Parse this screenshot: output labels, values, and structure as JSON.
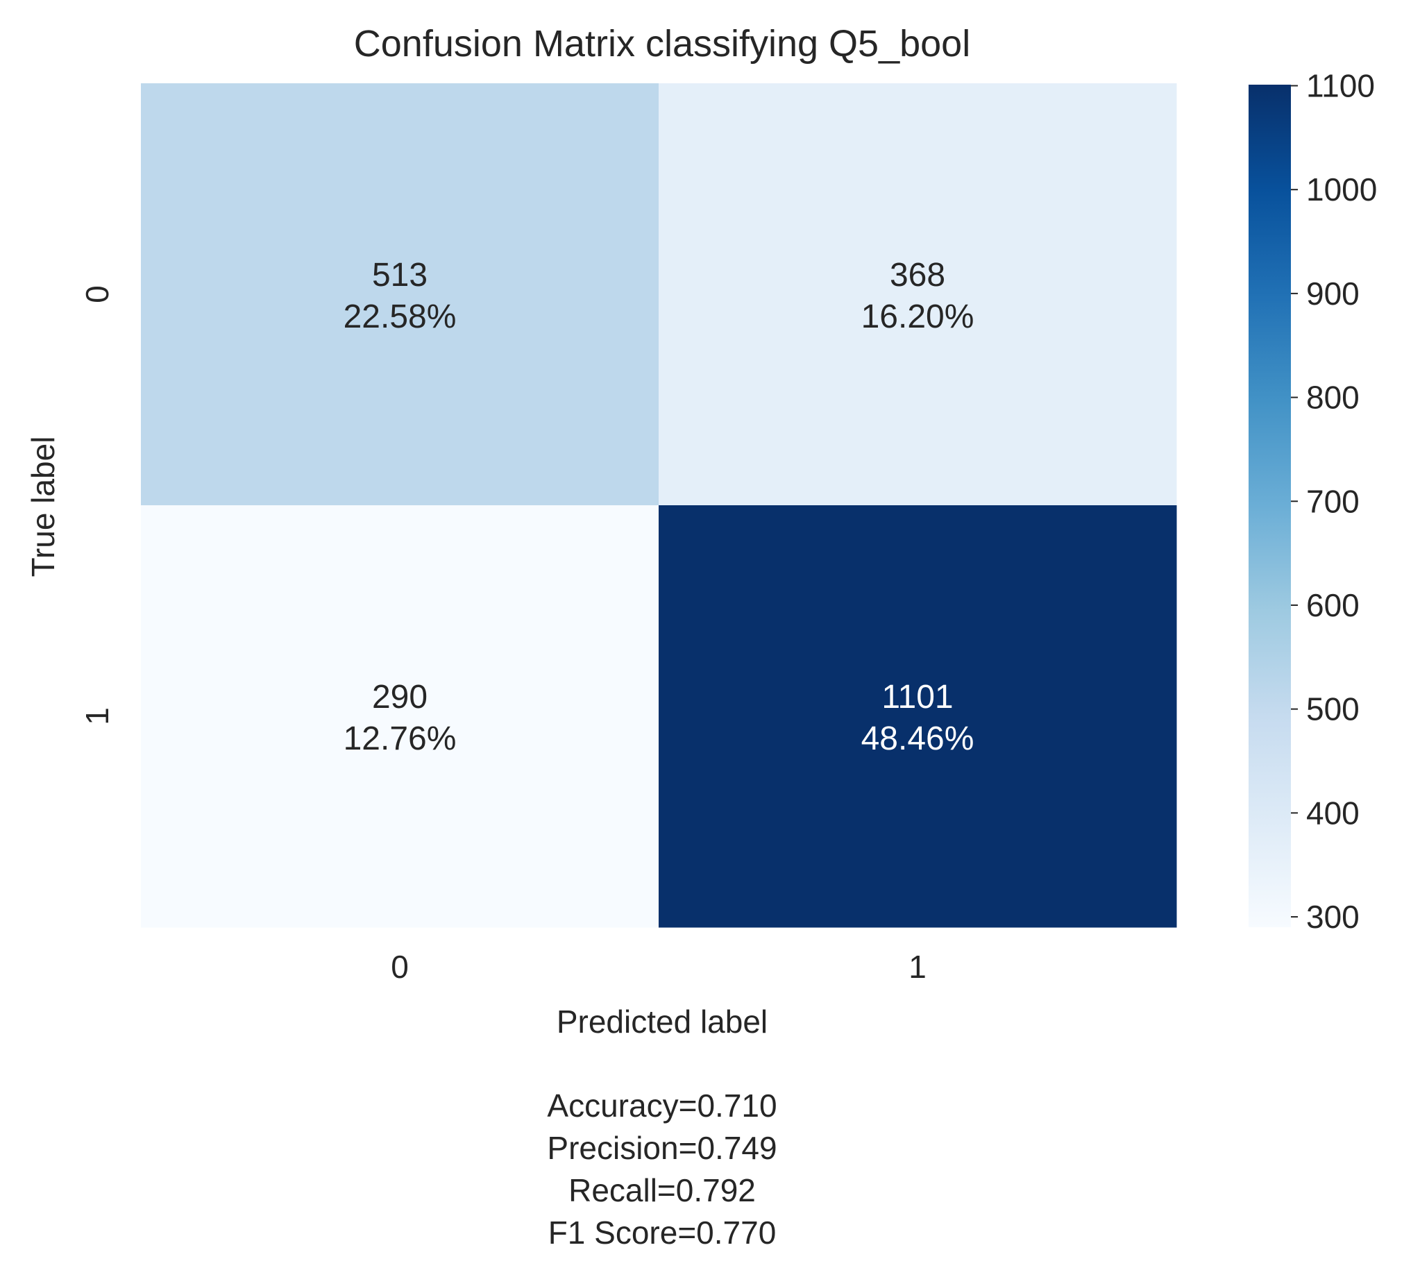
{
  "chart_data": {
    "type": "heatmap",
    "title": "Confusion Matrix classifying Q5_bool",
    "xlabel": "Predicted label",
    "ylabel": "True label",
    "x_ticklabels": [
      "0",
      "1"
    ],
    "y_ticklabels": [
      "0",
      "1"
    ],
    "values": [
      [
        513,
        368
      ],
      [
        290,
        1101
      ]
    ],
    "percent_labels": [
      [
        "22.58%",
        "16.20%"
      ],
      [
        "12.76%",
        "48.46%"
      ]
    ],
    "colormap": "Blues",
    "colorbar": {
      "range": [
        290,
        1101
      ],
      "ticks": [
        300,
        400,
        500,
        600,
        700,
        800,
        900,
        1000,
        1100
      ]
    },
    "metrics": [
      "Accuracy=0.710",
      "Precision=0.749",
      "Recall=0.792",
      "F1 Score=0.770"
    ],
    "grid": false
  }
}
